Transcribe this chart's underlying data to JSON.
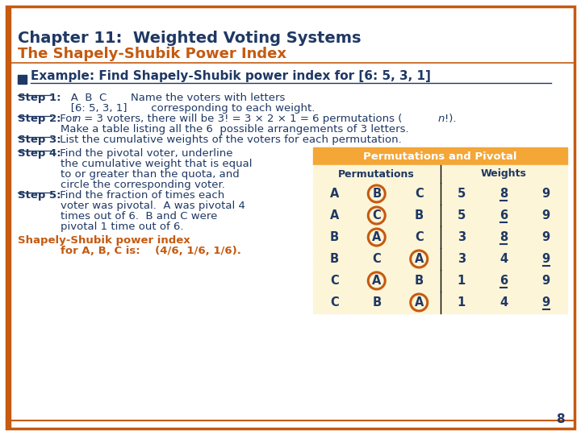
{
  "title1": "Chapter 11:  Weighted Voting Systems",
  "title2": "The Shapely-Shubik Power Index",
  "title1_color": "#1f3864",
  "title2_color": "#c55a11",
  "bg_color": "#ffffff",
  "border_color": "#c55a11",
  "bullet_color": "#1f3864",
  "text_color": "#1f3864",
  "orange_text_color": "#c55a11",
  "table_header_bg": "#f4a636",
  "table_body_bg": "#fdf5d8",
  "table_header_text": "#ffffff",
  "table_col_header_text": "#1f3864",
  "table_data_text": "#1f3864",
  "circle_color": "#c55a11",
  "underline_color": "#1f3864",
  "page_number": "8",
  "permutations": [
    [
      "A",
      "B",
      "C",
      5,
      8,
      9
    ],
    [
      "A",
      "C",
      "B",
      5,
      6,
      9
    ],
    [
      "B",
      "A",
      "C",
      3,
      8,
      9
    ],
    [
      "B",
      "C",
      "A",
      3,
      4,
      9
    ],
    [
      "C",
      "A",
      "B",
      1,
      6,
      9
    ],
    [
      "C",
      "B",
      "A",
      1,
      4,
      9
    ]
  ],
  "circled_positions": [
    1,
    1,
    1,
    2,
    1,
    2
  ],
  "underlined_weights": [
    [
      false,
      true,
      false
    ],
    [
      false,
      true,
      false
    ],
    [
      false,
      true,
      false
    ],
    [
      false,
      false,
      true
    ],
    [
      false,
      true,
      false
    ],
    [
      false,
      false,
      true
    ]
  ]
}
